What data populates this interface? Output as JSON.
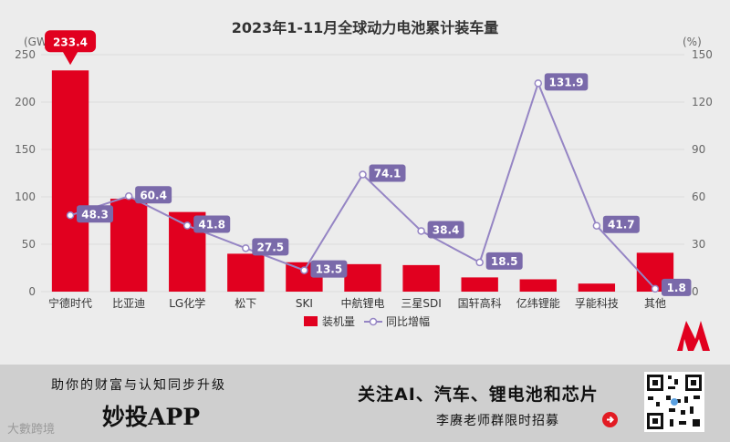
{
  "chart_data": {
    "type": "bar+line",
    "title": "2023年1-11月全球动力电池累计装车量",
    "left_axis_unit": "(GWh)",
    "right_axis_unit": "(%)",
    "left_ylim": [
      0,
      250
    ],
    "left_ticks": [
      0,
      50,
      100,
      150,
      200,
      250
    ],
    "right_ylim": [
      0,
      150
    ],
    "right_ticks": [
      0,
      30,
      60,
      90,
      120,
      150
    ],
    "categories": [
      "宁德时代",
      "比亚迪",
      "LG化学",
      "松下",
      "SKI",
      "中航锂电",
      "三星SDI",
      "国轩高科",
      "亿纬锂能",
      "孚能科技",
      "其他"
    ],
    "series": [
      {
        "name": "装机量",
        "kind": "bar",
        "axis": "left",
        "color": "#e1001f",
        "values": [
          233.4,
          98.0,
          84.0,
          40.0,
          31.0,
          29.0,
          28.0,
          15.0,
          13.0,
          8.5,
          41.0
        ],
        "labeled": [
          "233.4",
          "",
          "",
          "",
          "",
          "",
          "",
          "",
          "",
          "",
          ""
        ]
      },
      {
        "name": "同比增幅",
        "kind": "line",
        "axis": "right",
        "color": "#9585c4",
        "values": [
          48.3,
          60.4,
          41.8,
          27.5,
          13.5,
          74.1,
          38.4,
          18.5,
          131.9,
          41.7,
          1.8
        ],
        "labels": [
          "48.3",
          "60.4",
          "41.8",
          "27.5",
          "13.5",
          "74.1",
          "38.4",
          "18.5",
          "131.9",
          "41.7",
          "1.8"
        ]
      }
    ],
    "legend": {
      "position": "bottom-center"
    },
    "grid": true
  },
  "banner": {
    "slogan": "助你的财富与认知同步升级",
    "brand": "妙投APP",
    "watermark": "大數跨境",
    "headline": "关注AI、汽车、锂电池和芯片",
    "cta": "李赓老师群限时招募"
  },
  "colors": {
    "bar": "#e1001f",
    "line": "#9585c4",
    "label_bg": "#7a6aaa",
    "grid": "#dcdcdc",
    "axis_text": "#666666"
  }
}
